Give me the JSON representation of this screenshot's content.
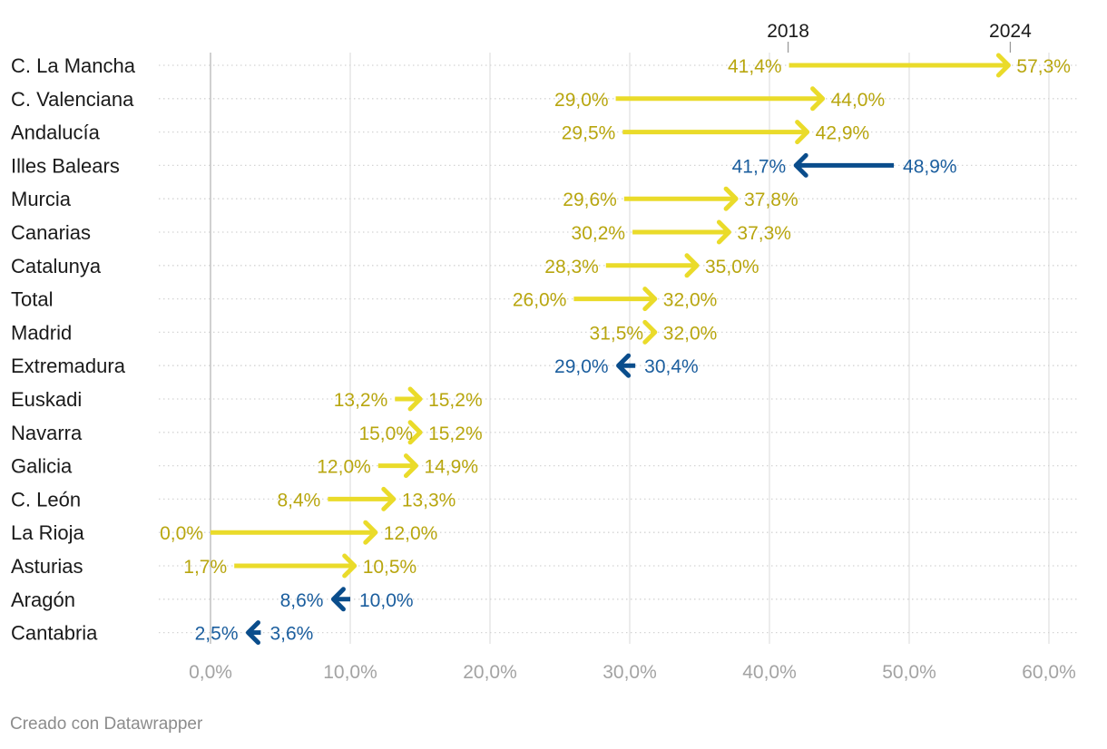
{
  "chart_data": {
    "type": "arrow",
    "xlim": [
      0,
      60
    ],
    "ticks": [
      0,
      10,
      20,
      30,
      40,
      50,
      60
    ],
    "tick_labels": [
      "0,0%",
      "10,0%",
      "20,0%",
      "30,0%",
      "40,0%",
      "50,0%",
      "60,0%"
    ],
    "series_names": [
      "2018",
      "2024"
    ],
    "rows": [
      {
        "region": "C. La Mancha",
        "v2018": 41.4,
        "v2024": 57.3,
        "l2018": "41,4%",
        "l2024": "57,3%"
      },
      {
        "region": "C. Valenciana",
        "v2018": 29.0,
        "v2024": 44.0,
        "l2018": "29,0%",
        "l2024": "44,0%"
      },
      {
        "region": "Andalucía",
        "v2018": 29.5,
        "v2024": 42.9,
        "l2018": "29,5%",
        "l2024": "42,9%"
      },
      {
        "region": "Illes Balears",
        "v2018": 48.9,
        "v2024": 41.7,
        "l2018": "48,9%",
        "l2024": "41,7%"
      },
      {
        "region": "Murcia",
        "v2018": 29.6,
        "v2024": 37.8,
        "l2018": "29,6%",
        "l2024": "37,8%"
      },
      {
        "region": "Canarias",
        "v2018": 30.2,
        "v2024": 37.3,
        "l2018": "30,2%",
        "l2024": "37,3%"
      },
      {
        "region": "Catalunya",
        "v2018": 28.3,
        "v2024": 35.0,
        "l2018": "28,3%",
        "l2024": "35,0%"
      },
      {
        "region": "Total",
        "v2018": 26.0,
        "v2024": 32.0,
        "l2018": "26,0%",
        "l2024": "32,0%"
      },
      {
        "region": "Madrid",
        "v2018": 31.5,
        "v2024": 32.0,
        "l2018": "31,5%",
        "l2024": "32,0%"
      },
      {
        "region": "Extremadura",
        "v2018": 30.4,
        "v2024": 29.0,
        "l2018": "30,4%",
        "l2024": "29,0%"
      },
      {
        "region": "Euskadi",
        "v2018": 13.2,
        "v2024": 15.2,
        "l2018": "13,2%",
        "l2024": "15,2%"
      },
      {
        "region": "Navarra",
        "v2018": 15.0,
        "v2024": 15.2,
        "l2018": "15,0%",
        "l2024": "15,2%"
      },
      {
        "region": "Galicia",
        "v2018": 12.0,
        "v2024": 14.9,
        "l2018": "12,0%",
        "l2024": "14,9%"
      },
      {
        "region": "C. León",
        "v2018": 8.4,
        "v2024": 13.3,
        "l2018": "8,4%",
        "l2024": "13,3%"
      },
      {
        "region": "La Rioja",
        "v2018": 0.0,
        "v2024": 12.0,
        "l2018": "0,0%",
        "l2024": "12,0%"
      },
      {
        "region": "Asturias",
        "v2018": 1.7,
        "v2024": 10.5,
        "l2018": "1,7%",
        "l2024": "10,5%"
      },
      {
        "region": "Aragón",
        "v2018": 10.0,
        "v2024": 8.6,
        "l2018": "10,0%",
        "l2024": "8,6%"
      },
      {
        "region": "Cantabria",
        "v2018": 3.6,
        "v2024": 2.5,
        "l2018": "3,6%",
        "l2024": "2,5%"
      }
    ],
    "colors": {
      "increase_arrow": "#eadb2a",
      "increase_label": "#b8a60f",
      "decrease_arrow": "#0a4d8c",
      "decrease_label": "#1b5e9e",
      "gridline": "#e0e0e0",
      "zero_line": "#c4c4c4",
      "row_dots": "#d4d4d4"
    }
  },
  "footer": "Creado con Datawrapper"
}
